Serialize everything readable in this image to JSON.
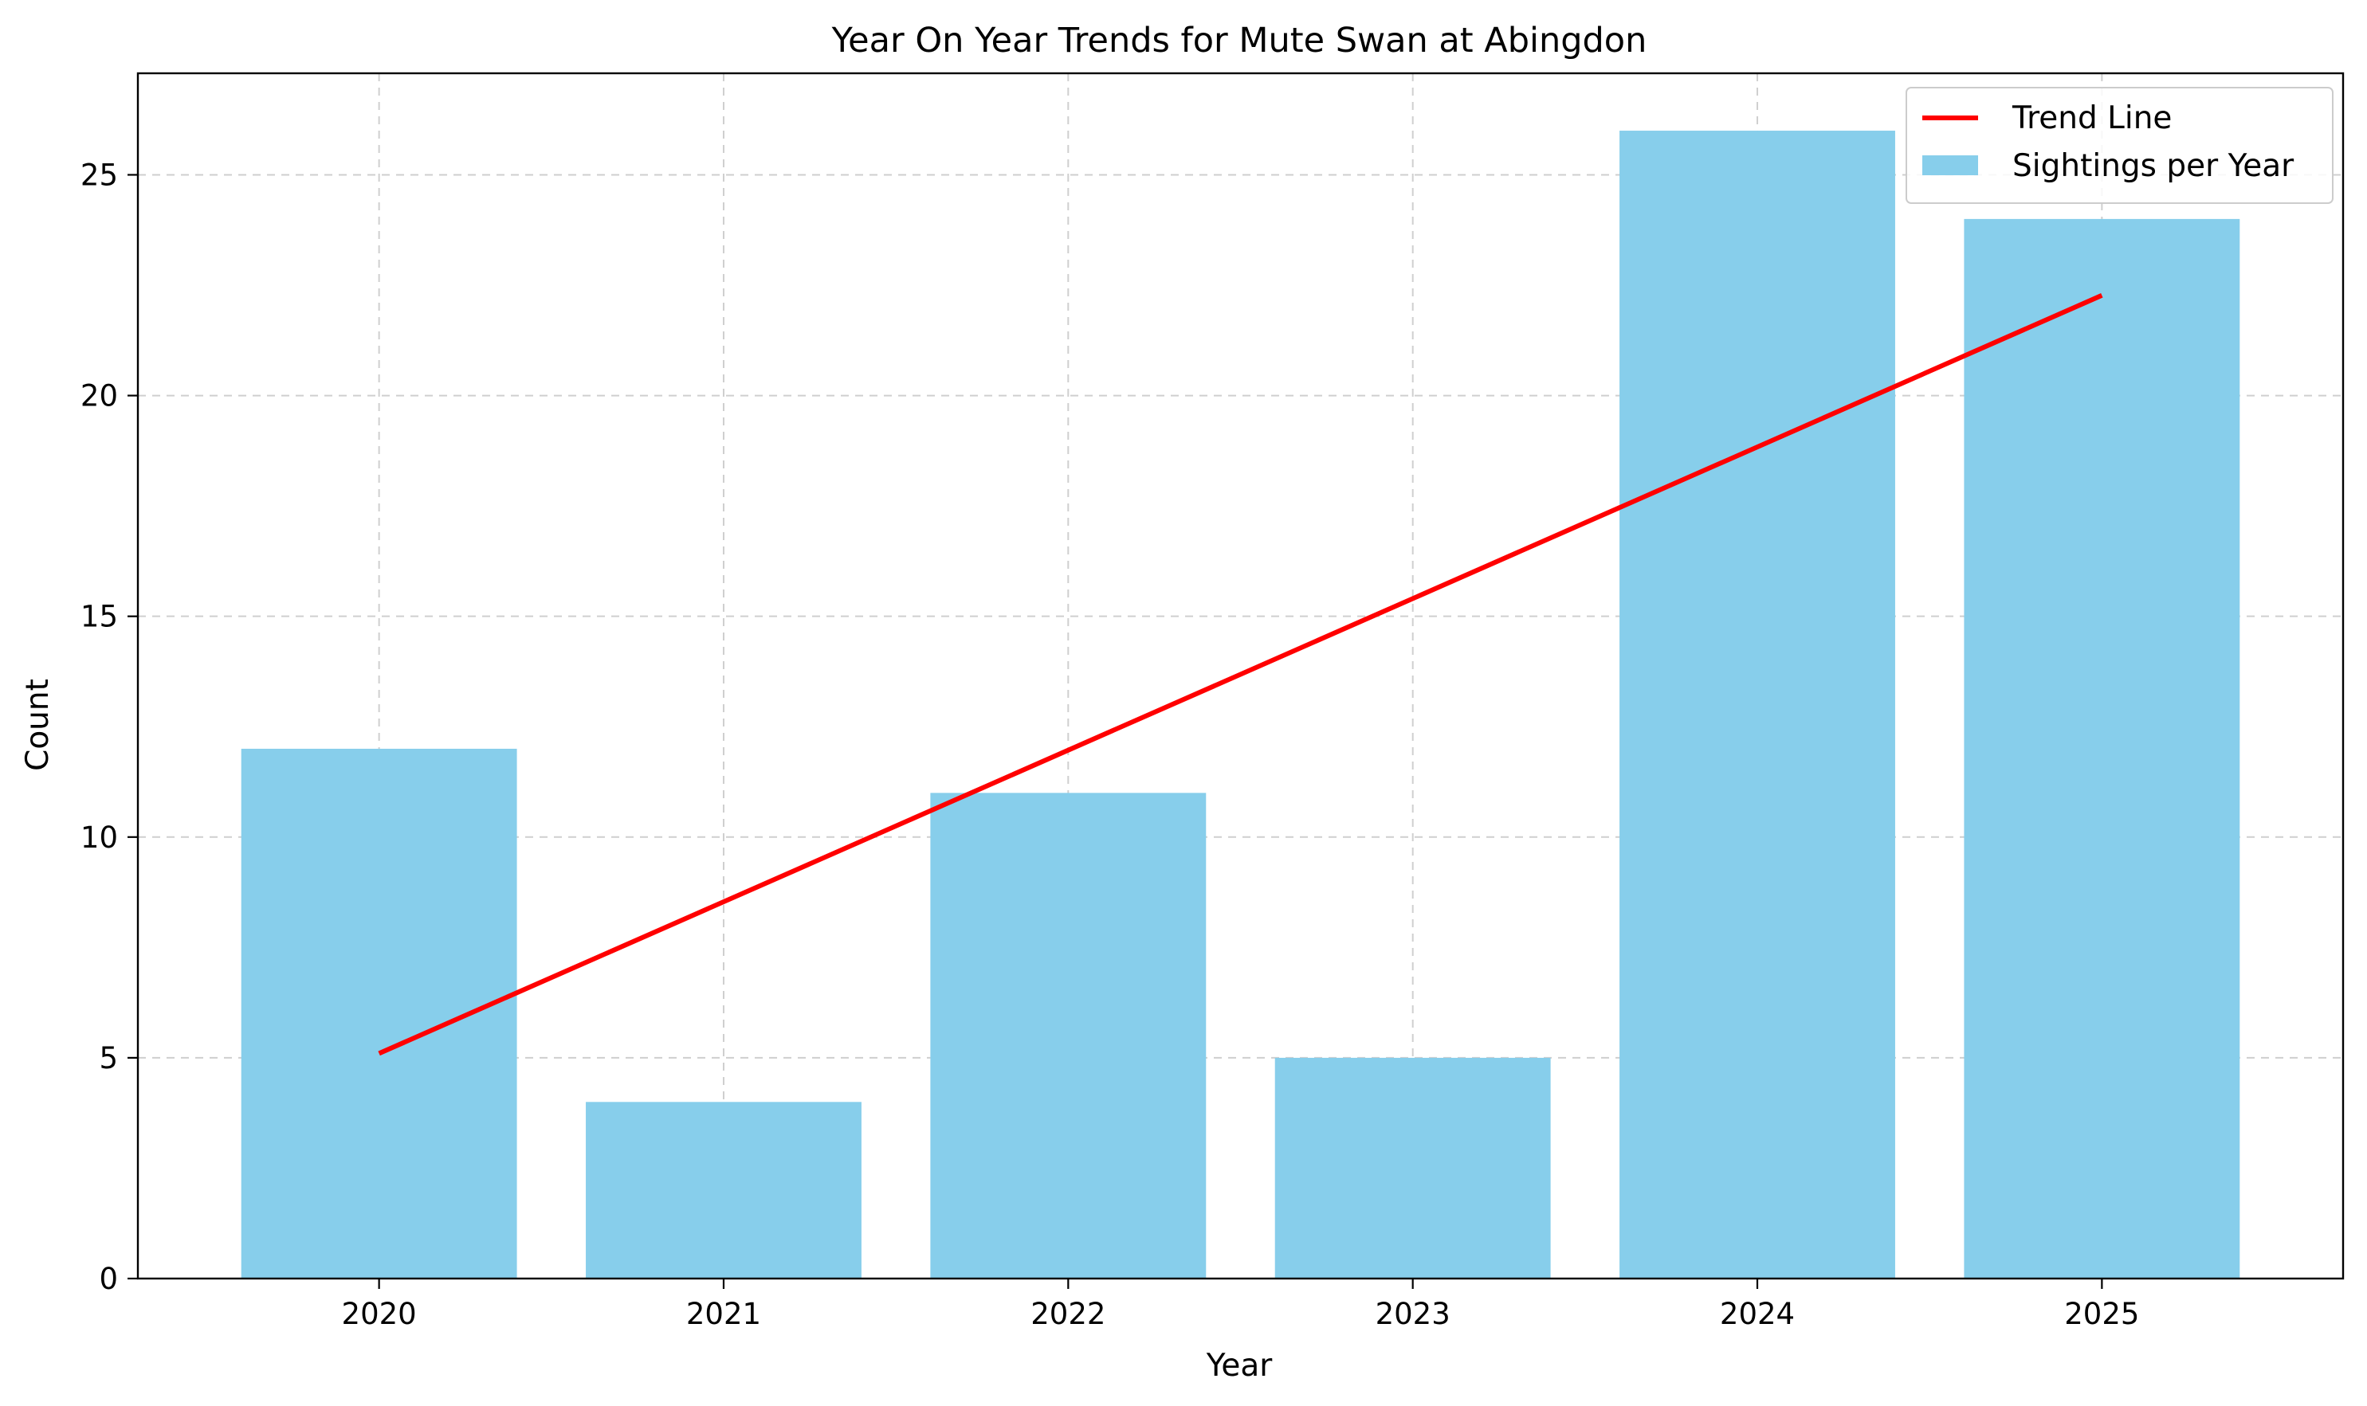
{
  "chart_data": {
    "type": "bar",
    "title": "Year On Year Trends for Mute Swan at Abingdon",
    "xlabel": "Year",
    "ylabel": "Count",
    "categories": [
      "2020",
      "2021",
      "2022",
      "2023",
      "2024",
      "2025"
    ],
    "series": [
      {
        "name": "Sightings per Year",
        "type": "bar",
        "color": "#87ceeb",
        "values": [
          12,
          4,
          11,
          5,
          26,
          24
        ]
      },
      {
        "name": "Trend Line",
        "type": "line",
        "color": "#ff0000",
        "x": [
          "2020",
          "2025"
        ],
        "values": [
          5.1,
          22.27
        ]
      }
    ],
    "ylim": [
      0,
      27.3
    ],
    "yticks": [
      0,
      5,
      10,
      15,
      20,
      25
    ],
    "grid": true,
    "legend_position": "top-right"
  }
}
